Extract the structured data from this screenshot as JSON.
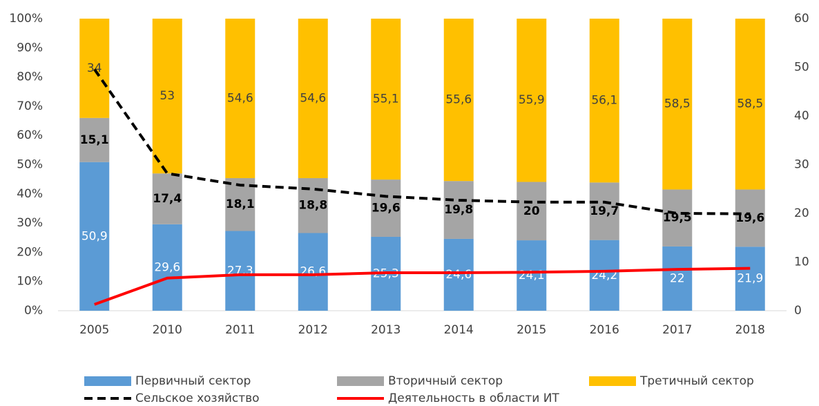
{
  "chart_data": {
    "type": "bar",
    "categories": [
      "2005",
      "2010",
      "2011",
      "2012",
      "2013",
      "2014",
      "2015",
      "2016",
      "2017",
      "2018"
    ],
    "stacked": true,
    "series": [
      {
        "name": "Первичный сектор",
        "color": "#5b9bd5",
        "label_color": "#ffffff",
        "values": [
          50.9,
          29.6,
          27.3,
          26.6,
          25.3,
          24.6,
          24.1,
          24.2,
          22,
          21.9
        ],
        "value_labels": [
          "50,9",
          "29,6",
          "27,3",
          "26,6",
          "25,3",
          "24,6",
          "24,1",
          "24,2",
          "22",
          "21,9"
        ]
      },
      {
        "name": "Вторичный сектор",
        "color": "#a5a5a5",
        "label_color": "#000000",
        "values": [
          15.1,
          17.4,
          18.1,
          18.8,
          19.6,
          19.8,
          20,
          19.7,
          19.5,
          19.6
        ],
        "value_labels": [
          "15,1",
          "17,4",
          "18,1",
          "18,8",
          "19,6",
          "19,8",
          "20",
          "19,7",
          "19,5",
          "19,6"
        ]
      },
      {
        "name": "Третичный сектор",
        "color": "#ffc000",
        "label_color": "#404040",
        "values": [
          34,
          53,
          54.6,
          54.6,
          55.1,
          55.6,
          55.9,
          56.1,
          58.5,
          58.5
        ],
        "value_labels": [
          "34",
          "53",
          "54,6",
          "54,6",
          "55,1",
          "55,6",
          "55,9",
          "56,1",
          "58,5",
          "58,5"
        ]
      },
      {
        "name": "Сельское хозяйство",
        "type": "line",
        "axis": "y2",
        "color": "#000000",
        "dashed": true,
        "values": [
          49.6,
          28.2,
          25.8,
          25,
          23.5,
          22.7,
          22.3,
          22.3,
          20,
          19.9
        ]
      },
      {
        "name": "Деятельность в области ИТ",
        "type": "line",
        "axis": "y2",
        "color": "#ff0000",
        "dashed": false,
        "values": [
          1.3,
          6.7,
          7.4,
          7.4,
          7.8,
          7.8,
          7.9,
          8.1,
          8.5,
          8.7
        ]
      }
    ],
    "ylim": [
      0,
      100
    ],
    "yticks": [
      {
        "value": 0,
        "label": "0%"
      },
      {
        "value": 10,
        "label": "10%"
      },
      {
        "value": 20,
        "label": "20%"
      },
      {
        "value": 30,
        "label": "30%"
      },
      {
        "value": 40,
        "label": "40%"
      },
      {
        "value": 50,
        "label": "50%"
      },
      {
        "value": 60,
        "label": "60%"
      },
      {
        "value": 70,
        "label": "70%"
      },
      {
        "value": 80,
        "label": "80%"
      },
      {
        "value": 90,
        "label": "90%"
      },
      {
        "value": 100,
        "label": "100%"
      }
    ],
    "y2lim": [
      0,
      60
    ],
    "y2ticks": [
      0,
      10,
      20,
      30,
      40,
      50,
      60
    ],
    "legend": "bottom"
  }
}
